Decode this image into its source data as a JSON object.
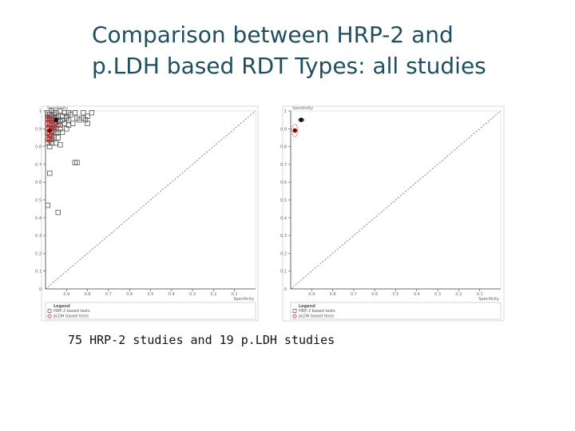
{
  "slide": {
    "title_line1": "Comparison between HRP-2 and",
    "title_line2": "p.LDH based RDT Types: all studies",
    "caption": "75 HRP-2 studies and 19 p.LDH studies"
  },
  "colors": {
    "title": "#1f4e60",
    "hrp2_marker": "#555555",
    "pldh_marker": "#cc2222",
    "summary_point": "#8b0000",
    "axis": "#444444",
    "reference_line": "#666666"
  },
  "chart_data": [
    {
      "type": "scatter",
      "xlabel": "Specificity",
      "ylabel": "Sensitivity",
      "x_axis_reversed": true,
      "xlim": [
        1,
        0
      ],
      "ylim": [
        0,
        1
      ],
      "xticks": [
        "0.9",
        "0.8",
        "0.7",
        "0.6",
        "0.5",
        "0.4",
        "0.3",
        "0.2",
        "0.1",
        "0"
      ],
      "yticks": [
        "0.1",
        "0.2",
        "0.3",
        "0.4",
        "0.5",
        "0.6",
        "0.7",
        "0.8",
        "0.9",
        "1"
      ],
      "reference_line": "chance diagonal",
      "legend": {
        "title": "Legend",
        "position": "bottom",
        "items": [
          "HRP-2 based tests",
          "pLDH based tests"
        ]
      },
      "series": [
        {
          "name": "HRP-2 based tests",
          "marker": "square",
          "points": [
            [
              0.97,
              1.0
            ],
            [
              0.96,
              0.99
            ],
            [
              0.95,
              0.99
            ],
            [
              0.93,
              1.0
            ],
            [
              0.91,
              0.99
            ],
            [
              0.86,
              0.99
            ],
            [
              0.89,
              0.99
            ],
            [
              0.82,
              0.99
            ],
            [
              0.97,
              0.97
            ],
            [
              0.96,
              0.98
            ],
            [
              0.94,
              0.97
            ],
            [
              0.92,
              0.97
            ],
            [
              0.9,
              0.97
            ],
            [
              0.85,
              0.96
            ],
            [
              0.84,
              0.95
            ],
            [
              0.8,
              0.97
            ],
            [
              0.99,
              0.96
            ],
            [
              0.98,
              0.95
            ],
            [
              0.97,
              0.95
            ],
            [
              0.95,
              0.96
            ],
            [
              0.94,
              0.95
            ],
            [
              0.93,
              0.94
            ],
            [
              0.89,
              0.95
            ],
            [
              0.82,
              0.96
            ],
            [
              0.78,
              0.99
            ],
            [
              0.99,
              0.93
            ],
            [
              0.98,
              0.93
            ],
            [
              0.97,
              0.92
            ],
            [
              0.96,
              0.93
            ],
            [
              0.95,
              0.92
            ],
            [
              0.93,
              0.92
            ],
            [
              0.99,
              0.9
            ],
            [
              0.98,
              0.9
            ],
            [
              0.96,
              0.89
            ],
            [
              0.95,
              0.9
            ],
            [
              0.99,
              0.88
            ],
            [
              0.98,
              0.87
            ],
            [
              0.97,
              0.88
            ],
            [
              0.96,
              0.85
            ],
            [
              0.99,
              0.85
            ],
            [
              0.98,
              0.84
            ],
            [
              0.94,
              0.85
            ],
            [
              0.99,
              0.82
            ],
            [
              0.97,
              0.82
            ],
            [
              0.93,
              0.81
            ],
            [
              0.81,
              0.95
            ],
            [
              0.87,
              0.93
            ],
            [
              0.9,
              0.9
            ],
            [
              0.92,
              0.88
            ],
            [
              0.97,
              0.86
            ],
            [
              0.99,
              0.98
            ],
            [
              0.98,
              0.98
            ],
            [
              0.96,
              0.96
            ],
            [
              0.95,
              0.94
            ],
            [
              0.97,
              0.9
            ],
            [
              0.95,
              0.88
            ],
            [
              0.91,
              0.93
            ],
            [
              0.93,
              0.9
            ],
            [
              0.89,
              0.92
            ],
            [
              0.8,
              0.93
            ],
            [
              0.86,
              0.71
            ],
            [
              0.85,
              0.71
            ],
            [
              0.98,
              0.65
            ],
            [
              0.99,
              0.47
            ],
            [
              0.94,
              0.43
            ],
            [
              0.98,
              0.96
            ],
            [
              0.99,
              0.99
            ],
            [
              0.96,
              0.91
            ],
            [
              0.94,
              0.88
            ],
            [
              0.92,
              0.95
            ],
            [
              0.97,
              0.84
            ],
            [
              0.98,
              0.8
            ],
            [
              0.95,
              0.82
            ],
            [
              0.9,
              0.96
            ],
            [
              0.88,
              0.98
            ]
          ]
        },
        {
          "name": "pLDH based tests",
          "marker": "diamond",
          "points": [
            [
              0.99,
              0.97
            ],
            [
              0.98,
              0.96
            ],
            [
              0.97,
              0.94
            ],
            [
              0.96,
              0.95
            ],
            [
              0.99,
              0.93
            ],
            [
              0.98,
              0.92
            ],
            [
              0.97,
              0.91
            ],
            [
              0.99,
              0.9
            ],
            [
              0.98,
              0.89
            ],
            [
              0.97,
              0.88
            ],
            [
              0.99,
              0.87
            ],
            [
              0.98,
              0.86
            ],
            [
              0.96,
              0.9
            ],
            [
              0.99,
              0.84
            ],
            [
              0.98,
              0.83
            ],
            [
              0.97,
              0.85
            ],
            [
              0.95,
              0.93
            ],
            [
              0.94,
              0.92
            ],
            [
              0.99,
              0.95
            ]
          ]
        }
      ],
      "summary_points": [
        {
          "name": "HRP-2 based tests",
          "x": 0.95,
          "y": 0.95
        },
        {
          "name": "pLDH based tests",
          "x": 0.98,
          "y": 0.89
        }
      ]
    },
    {
      "type": "scatter",
      "xlabel": "Specificity",
      "ylabel": "Sensitivity",
      "x_axis_reversed": true,
      "xlim": [
        1,
        0
      ],
      "ylim": [
        0,
        1
      ],
      "xticks": [
        "0.9",
        "0.8",
        "0.7",
        "0.6",
        "0.5",
        "0.4",
        "0.3",
        "0.2",
        "0.1",
        "0"
      ],
      "yticks": [
        "0.1",
        "0.2",
        "0.3",
        "0.4",
        "0.5",
        "0.6",
        "0.7",
        "0.8",
        "0.9",
        "1"
      ],
      "reference_line": "chance diagonal",
      "legend": {
        "title": "Legend",
        "position": "bottom",
        "items": [
          "HRP-2 based tests",
          "pLDH based tests"
        ]
      },
      "series": [
        {
          "name": "HRP-2 based tests",
          "marker": "square",
          "points": []
        },
        {
          "name": "pLDH based tests",
          "marker": "diamond",
          "points": []
        }
      ],
      "summary_points": [
        {
          "name": "HRP-2 based tests",
          "x": 0.95,
          "y": 0.95,
          "ci_x": [
            0.94,
            0.96
          ],
          "ci_y": [
            0.94,
            0.96
          ]
        },
        {
          "name": "pLDH based tests",
          "x": 0.98,
          "y": 0.89,
          "ci_x": [
            0.97,
            0.99
          ],
          "ci_y": [
            0.85,
            0.92
          ]
        }
      ]
    }
  ]
}
